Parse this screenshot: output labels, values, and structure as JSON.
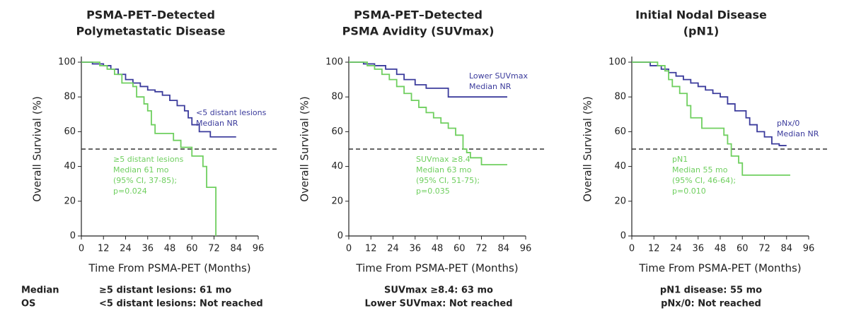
{
  "chart_data": [
    {
      "type": "line",
      "step": "post",
      "title": [
        "PSMA-PET–Detected",
        "Polymetastatic Disease"
      ],
      "xlabel": "Time From PSMA-PET (Months)",
      "ylabel": "Overall Survival (%)",
      "xlim": [
        0,
        96
      ],
      "xticks": [
        0,
        12,
        24,
        36,
        48,
        60,
        72,
        84,
        96
      ],
      "ylim": [
        0,
        100
      ],
      "yticks": [
        0,
        20,
        40,
        60,
        80,
        100
      ],
      "reference_line": 50,
      "series": [
        {
          "name": "<5 distant lesions",
          "notes": [
            "Median NR"
          ],
          "color": "#3b3b9c",
          "x": [
            0,
            6,
            12,
            16,
            20,
            24,
            28,
            32,
            36,
            40,
            44,
            48,
            52,
            56,
            58,
            60,
            64,
            70,
            84
          ],
          "values": [
            100,
            99,
            98,
            96,
            93,
            90,
            88,
            86,
            84,
            83,
            81,
            78,
            75,
            72,
            68,
            64,
            60,
            57,
            57
          ]
        },
        {
          "name": "≥5 distant lesions",
          "notes": [
            "Median 61 mo",
            "(95% CI, 37-85);",
            "p=0.024"
          ],
          "color": "#6fcf5f",
          "x": [
            0,
            10,
            14,
            18,
            22,
            28,
            30,
            34,
            36,
            38,
            40,
            48,
            50,
            54,
            60,
            66,
            68,
            72,
            73
          ],
          "values": [
            100,
            98,
            96,
            93,
            88,
            86,
            80,
            76,
            72,
            64,
            59,
            59,
            55,
            51,
            46,
            40,
            28,
            28,
            0
          ]
        }
      ]
    },
    {
      "type": "line",
      "step": "post",
      "title": [
        "PSMA-PET–Detected",
        "PSMA Avidity (SUVmax)"
      ],
      "xlabel": "Time From PSMA-PET (Months)",
      "ylabel": "Overall Survival (%)",
      "xlim": [
        0,
        96
      ],
      "xticks": [
        0,
        12,
        24,
        36,
        48,
        60,
        72,
        84,
        96
      ],
      "ylim": [
        0,
        100
      ],
      "yticks": [
        0,
        20,
        40,
        60,
        80,
        100
      ],
      "reference_line": 50,
      "series": [
        {
          "name": "Lower SUVmax",
          "notes": [
            "Median NR"
          ],
          "color": "#3b3b9c",
          "x": [
            0,
            8,
            14,
            20,
            26,
            30,
            36,
            42,
            52,
            54,
            86
          ],
          "values": [
            100,
            99,
            98,
            96,
            93,
            90,
            87,
            85,
            85,
            80,
            80
          ]
        },
        {
          "name": "SUVmax ≥8.4",
          "notes": [
            "Median 63 mo",
            "(95% CI, 51-75);",
            "p=0.035"
          ],
          "color": "#6fcf5f",
          "x": [
            0,
            10,
            14,
            18,
            22,
            26,
            30,
            34,
            38,
            42,
            46,
            50,
            54,
            58,
            62,
            64,
            66,
            72,
            86
          ],
          "values": [
            100,
            98,
            96,
            93,
            90,
            86,
            82,
            78,
            74,
            71,
            68,
            65,
            62,
            58,
            50,
            48,
            45,
            41,
            41
          ]
        }
      ]
    },
    {
      "type": "line",
      "step": "post",
      "title": [
        "Initial Nodal Disease",
        "(pN1)"
      ],
      "xlabel": "Time From PSMA-PET (Months)",
      "ylabel": "Overall Survival (%)",
      "xlim": [
        0,
        96
      ],
      "xticks": [
        0,
        12,
        24,
        36,
        48,
        60,
        72,
        84,
        96
      ],
      "ylim": [
        0,
        100
      ],
      "yticks": [
        0,
        20,
        40,
        60,
        80,
        100
      ],
      "reference_line": 50,
      "series": [
        {
          "name": "pNx/0",
          "notes": [
            "Median NR"
          ],
          "color": "#3b3b9c",
          "x": [
            0,
            10,
            16,
            20,
            24,
            28,
            32,
            36,
            40,
            44,
            48,
            52,
            56,
            62,
            64,
            68,
            72,
            76,
            80,
            84
          ],
          "values": [
            100,
            98,
            96,
            94,
            92,
            90,
            88,
            86,
            84,
            82,
            80,
            76,
            72,
            68,
            64,
            60,
            57,
            53,
            52,
            52
          ]
        },
        {
          "name": "pN1",
          "notes": [
            "Median 55 mo",
            "(95% CI, 46-64);",
            "p=0.010"
          ],
          "color": "#6fcf5f",
          "x": [
            0,
            14,
            18,
            20,
            22,
            26,
            30,
            32,
            38,
            46,
            50,
            52,
            54,
            58,
            60,
            86
          ],
          "values": [
            100,
            98,
            95,
            90,
            86,
            82,
            75,
            68,
            62,
            62,
            58,
            53,
            46,
            42,
            35,
            35
          ]
        }
      ]
    }
  ],
  "footer": {
    "label": [
      "Median",
      "OS"
    ],
    "panels": [
      [
        "≥5 distant lesions: 61 mo",
        "<5 distant lesions: Not reached"
      ],
      [
        "SUVmax ≥8.4: 63 mo",
        "Lower SUVmax: Not reached"
      ],
      [
        "pN1 disease: 55 mo",
        "pNx/0: Not reached"
      ]
    ]
  }
}
